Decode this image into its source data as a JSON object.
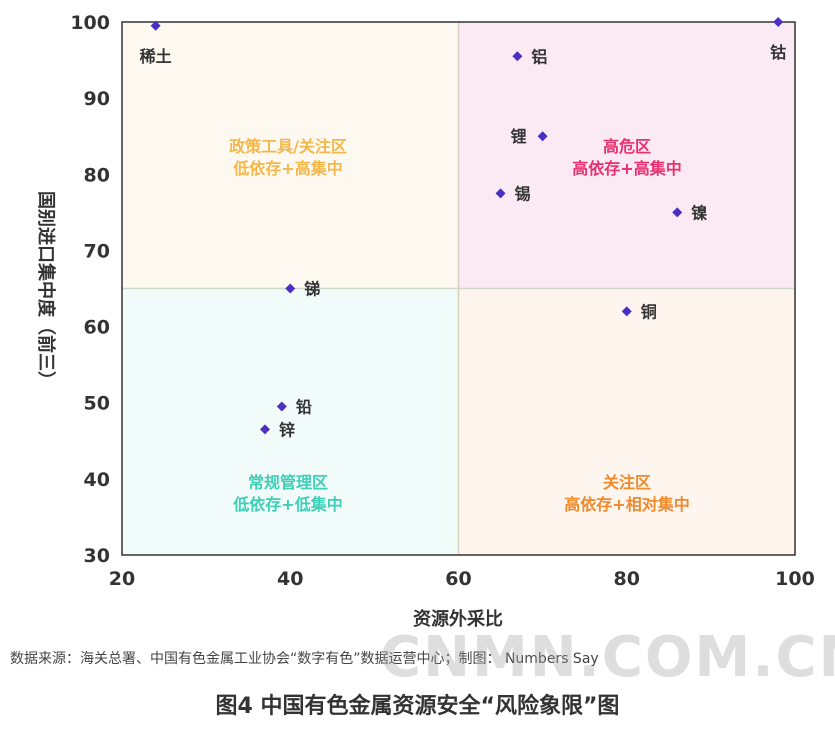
{
  "chart_data": {
    "type": "scatter",
    "title": "图4  中国有色金属资源安全“风险象限”图",
    "xlabel": "资源外采比",
    "ylabel": "国别进口集中度（前三）",
    "xlim": [
      20,
      100
    ],
    "ylim": [
      30,
      100
    ],
    "xticks": [
      "20",
      "40",
      "60",
      "80",
      "100"
    ],
    "yticks": [
      "30",
      "40",
      "50",
      "60",
      "70",
      "80",
      "90",
      "100"
    ],
    "points": [
      {
        "name": "稀土",
        "x": 24,
        "y": 99.5
      },
      {
        "name": "钴",
        "x": 98,
        "y": 100
      },
      {
        "name": "铝",
        "x": 67,
        "y": 95.5
      },
      {
        "name": "锂",
        "x": 70,
        "y": 85
      },
      {
        "name": "锡",
        "x": 65,
        "y": 77.5
      },
      {
        "name": "镍",
        "x": 86,
        "y": 75
      },
      {
        "name": "锑",
        "x": 40,
        "y": 65
      },
      {
        "name": "铜",
        "x": 80,
        "y": 62
      },
      {
        "name": "铅",
        "x": 39,
        "y": 49.5
      },
      {
        "name": "锌",
        "x": 37,
        "y": 46.5
      }
    ],
    "quadrant_split": {
      "x": 60,
      "y": 65
    },
    "quadrants": [
      {
        "id": "top-left",
        "line1": "政策工具/关注区",
        "line2": "低依存+高集中",
        "color": "#f2b84b",
        "bg": "#fdf9f1"
      },
      {
        "id": "top-right",
        "line1": "高危区",
        "line2": "高依存+高集中",
        "color": "#e8316f",
        "bg": "#fbeaf3"
      },
      {
        "id": "bottom-left",
        "line1": "常规管理区",
        "line2": "低依存+低集中",
        "color": "#3fcfb6",
        "bg": "#f1fbfa"
      },
      {
        "id": "bottom-right",
        "line1": "关注区",
        "line2": "高依存+相对集中",
        "color": "#f08a2c",
        "bg": "#fdf5ee"
      }
    ],
    "marker_color": "#4a2fc4",
    "grid": false
  },
  "source_text": "数据来源：海关总署、中国有色金属工业协会“数字有色”数据运营中心；制图：   Numbers Say",
  "watermark": "CNMN.COM.CN"
}
